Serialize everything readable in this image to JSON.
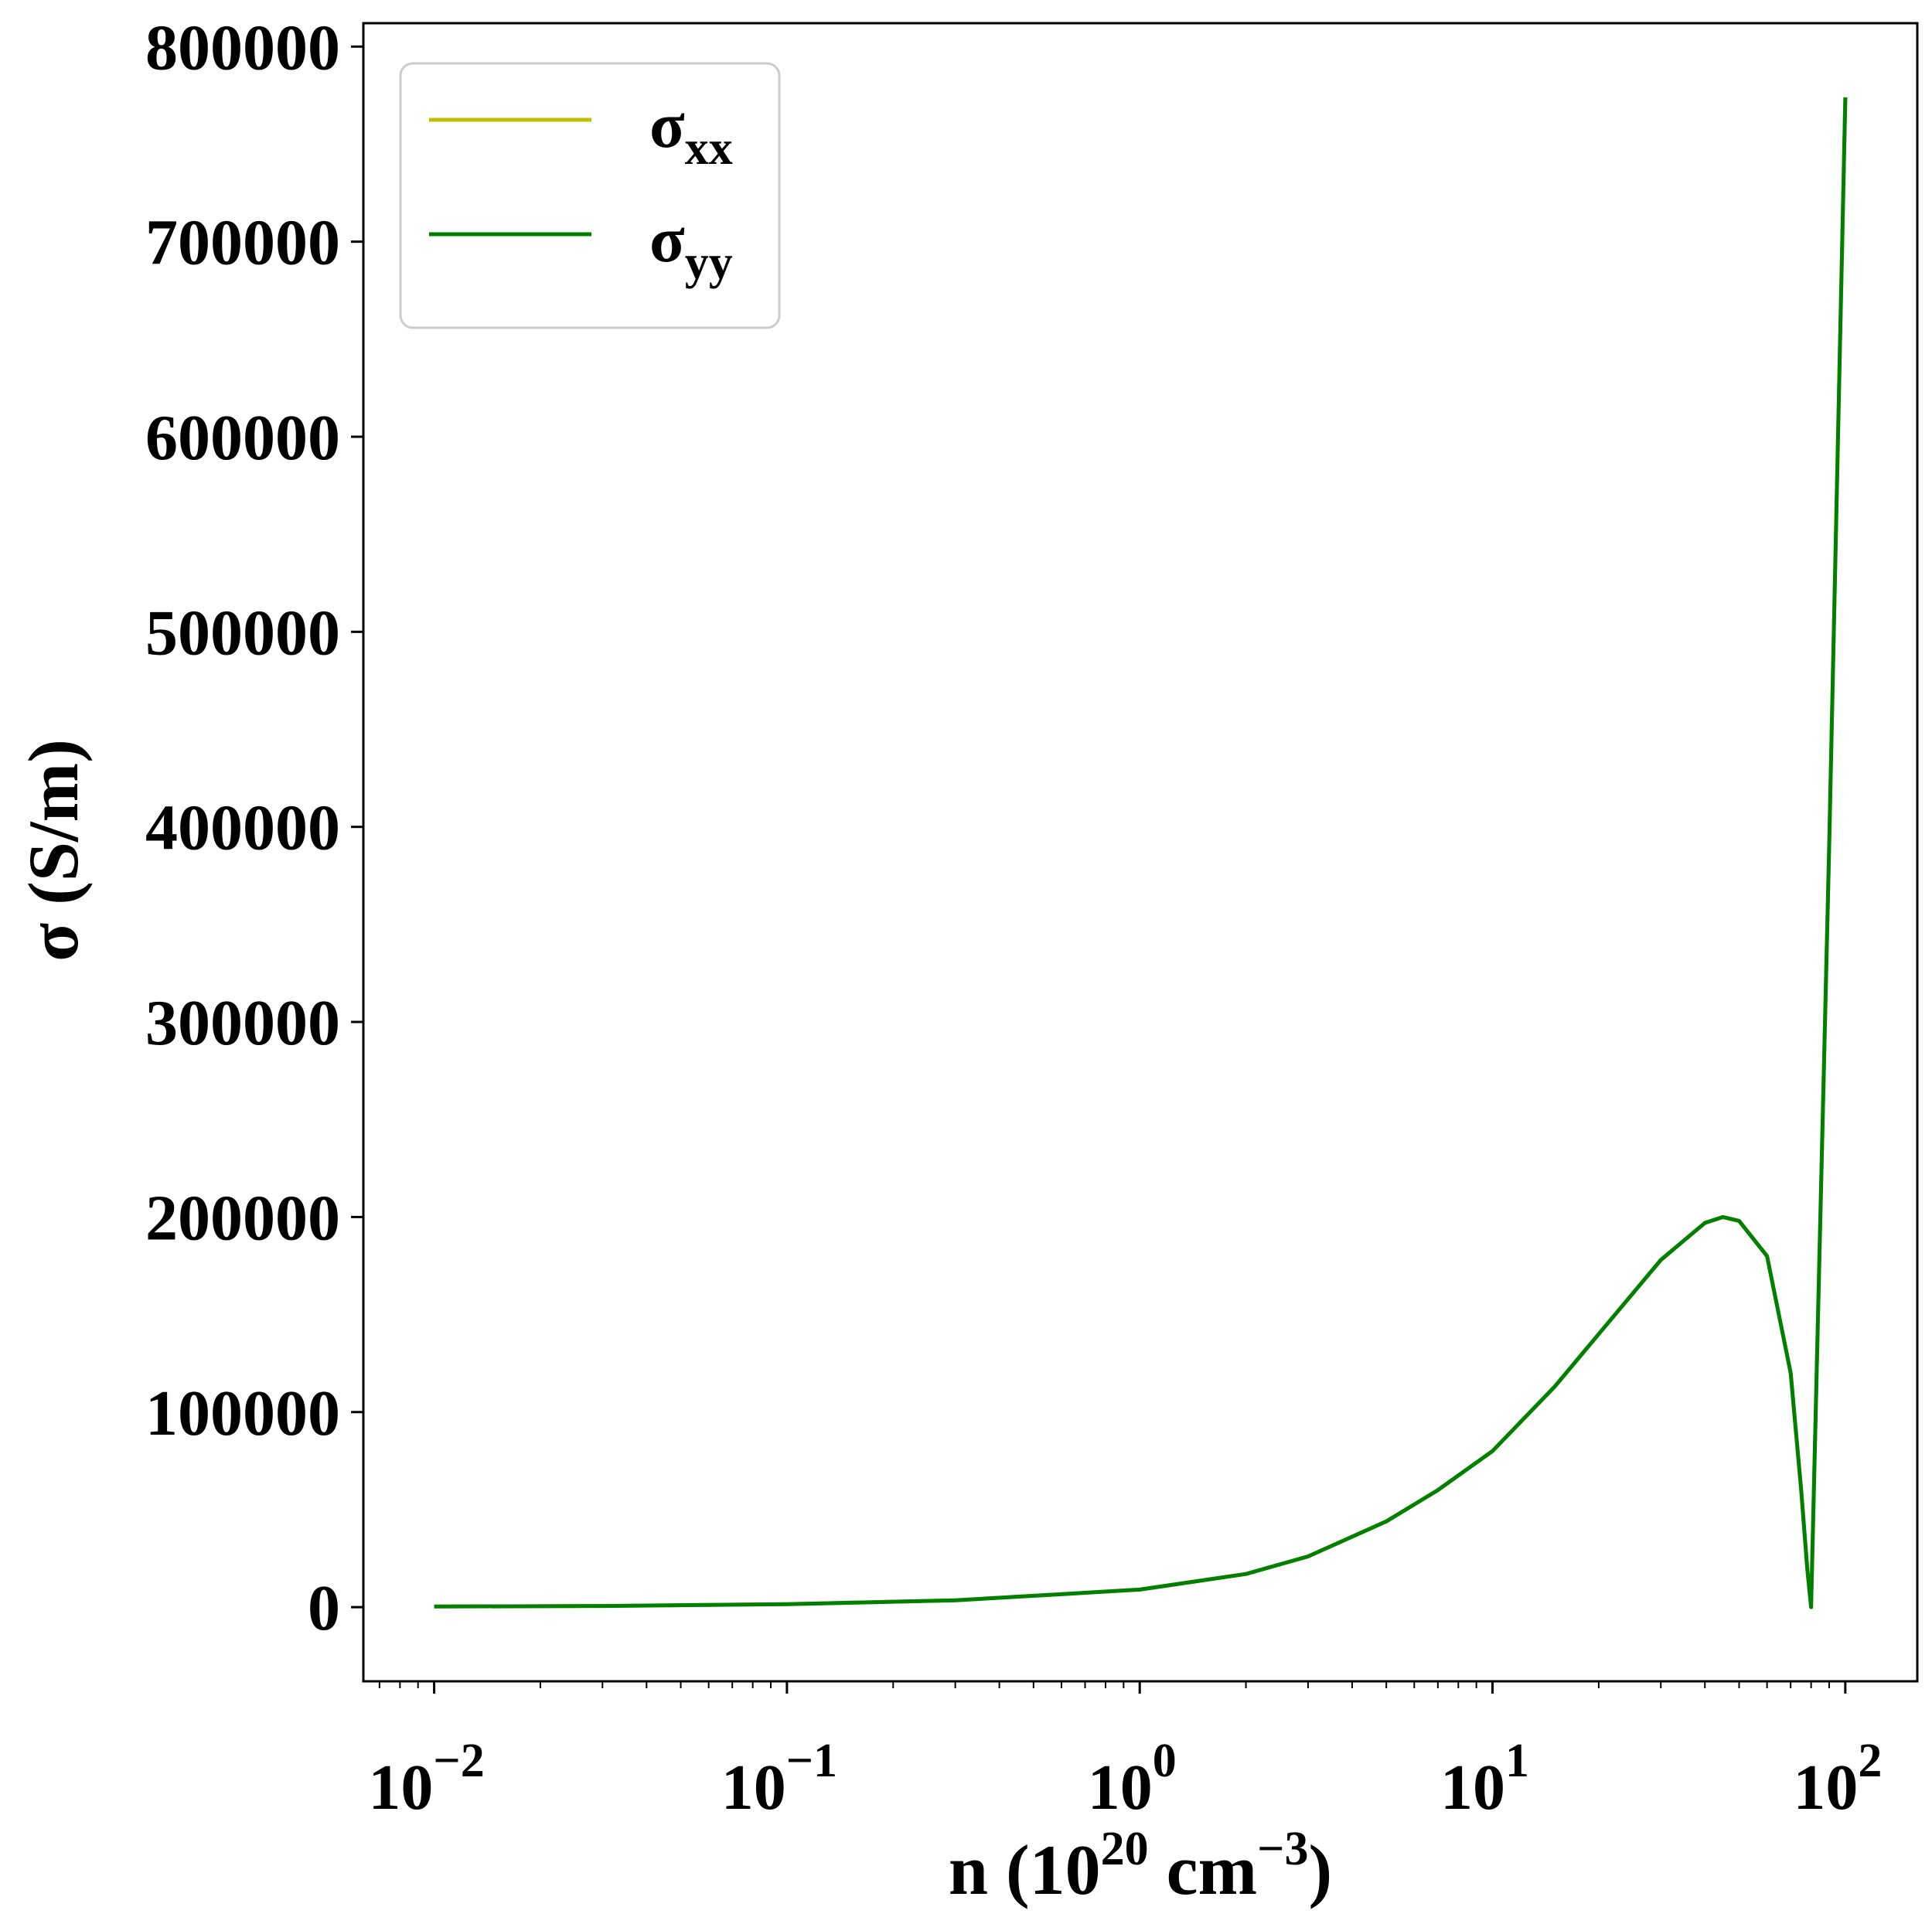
{
  "chart_data": {
    "type": "line",
    "xscale": "log",
    "xlim": [
      0.0063,
      160
    ],
    "ylim": [
      -38000,
      812000
    ],
    "xlabel": {
      "base": "n (10",
      "exp1": "20",
      "mid": " cm",
      "exp2": "−3",
      "tail": ")"
    },
    "ylabel": "σ (S/m)",
    "x_ticks": [
      {
        "value": 0.01,
        "base": "10",
        "exp": "−2"
      },
      {
        "value": 0.1,
        "base": "10",
        "exp": "−1"
      },
      {
        "value": 1,
        "base": "10",
        "exp": "0"
      },
      {
        "value": 10,
        "base": "10",
        "exp": "1"
      },
      {
        "value": 100,
        "base": "10",
        "exp": "2"
      }
    ],
    "y_ticks": [
      {
        "value": 0,
        "label": "0"
      },
      {
        "value": 100000,
        "label": "100000"
      },
      {
        "value": 200000,
        "label": "200000"
      },
      {
        "value": 300000,
        "label": "300000"
      },
      {
        "value": 400000,
        "label": "400000"
      },
      {
        "value": 500000,
        "label": "500000"
      },
      {
        "value": 600000,
        "label": "600000"
      },
      {
        "value": 700000,
        "label": "700000"
      },
      {
        "value": 800000,
        "label": "800000"
      }
    ],
    "legend": {
      "placement": "upper-left",
      "entries": [
        {
          "symbol": "σ",
          "sub": "xx",
          "color": "#bfbf00"
        },
        {
          "symbol": "σ",
          "sub": "yy",
          "color": "#008000"
        }
      ]
    },
    "series": [
      {
        "color": "#bfbf00",
        "x": [
          0.01,
          0.03,
          0.1,
          0.3,
          1,
          2,
          3,
          5,
          7,
          10,
          15,
          20,
          30,
          40,
          45,
          50,
          60,
          70,
          75,
          78,
          80,
          90,
          100
        ],
        "y": [
          300,
          600,
          1500,
          3500,
          9000,
          17000,
          26000,
          44000,
          60000,
          80000,
          113000,
          140000,
          178000,
          197000,
          200000,
          198000,
          180000,
          120000,
          60000,
          20000,
          0,
          390000,
          774000
        ]
      },
      {
        "color": "#008000",
        "x": [
          0.01,
          0.03,
          0.1,
          0.3,
          1,
          2,
          3,
          5,
          7,
          10,
          15,
          20,
          30,
          40,
          45,
          50,
          60,
          70,
          75,
          78,
          80,
          90,
          100
        ],
        "y": [
          300,
          600,
          1500,
          3500,
          9000,
          17000,
          26000,
          44000,
          60000,
          80000,
          113000,
          140000,
          178000,
          197000,
          200000,
          198000,
          180000,
          120000,
          60000,
          20000,
          0,
          390000,
          774000
        ]
      }
    ]
  }
}
